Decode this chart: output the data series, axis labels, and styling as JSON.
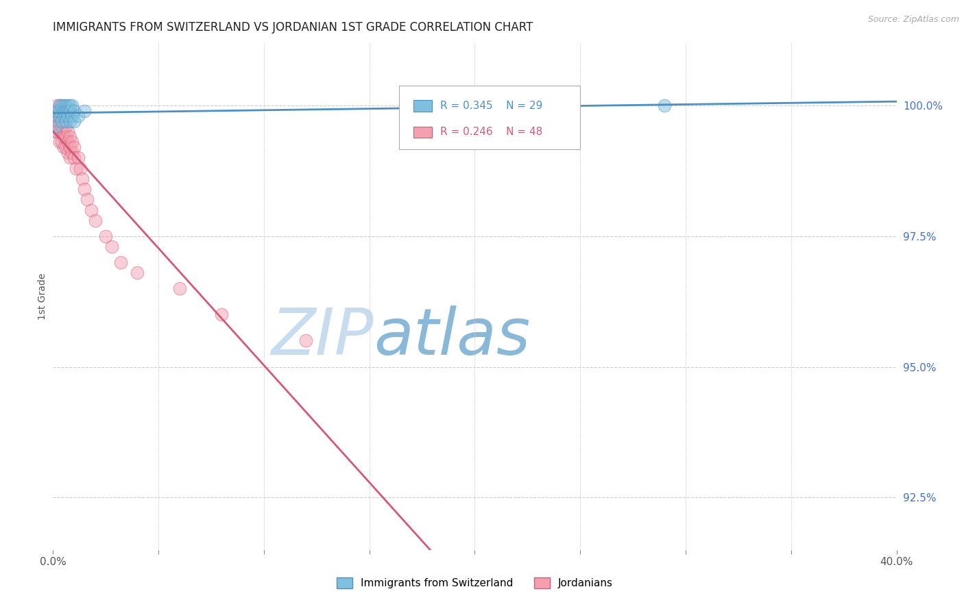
{
  "title": "IMMIGRANTS FROM SWITZERLAND VS JORDANIAN 1ST GRADE CORRELATION CHART",
  "source": "Source: ZipAtlas.com",
  "ylabel": "1st Grade",
  "right_yticks": [
    100.0,
    97.5,
    95.0,
    92.5
  ],
  "right_ytick_labels": [
    "100.0%",
    "97.5%",
    "95.0%",
    "92.5%"
  ],
  "legend_blue_r": "R = 0.345",
  "legend_blue_n": "N = 29",
  "legend_pink_r": "R = 0.246",
  "legend_pink_n": "N = 48",
  "blue_color": "#7fbfdf",
  "pink_color": "#f4a0b0",
  "blue_line_color": "#4a90c4",
  "pink_line_color": "#d45878",
  "watermark_zip_color": "#c8dcf0",
  "watermark_atlas_color": "#8ab8d8",
  "swiss_x": [
    0.001,
    0.002,
    0.002,
    0.003,
    0.003,
    0.003,
    0.004,
    0.004,
    0.005,
    0.005,
    0.005,
    0.006,
    0.006,
    0.006,
    0.006,
    0.007,
    0.007,
    0.007,
    0.008,
    0.008,
    0.008,
    0.009,
    0.009,
    0.01,
    0.01,
    0.012,
    0.015,
    0.23,
    0.29
  ],
  "swiss_y": [
    99.6,
    99.8,
    99.9,
    100.0,
    99.8,
    99.9,
    100.0,
    99.7,
    100.0,
    99.9,
    99.8,
    100.0,
    99.9,
    99.8,
    99.7,
    100.0,
    99.9,
    99.8,
    100.0,
    99.7,
    99.9,
    99.8,
    100.0,
    99.9,
    99.7,
    99.8,
    99.9,
    100.0,
    100.0
  ],
  "jordan_x": [
    0.001,
    0.001,
    0.001,
    0.002,
    0.002,
    0.002,
    0.002,
    0.003,
    0.003,
    0.003,
    0.003,
    0.003,
    0.004,
    0.004,
    0.004,
    0.004,
    0.005,
    0.005,
    0.005,
    0.005,
    0.006,
    0.006,
    0.006,
    0.007,
    0.007,
    0.007,
    0.008,
    0.008,
    0.008,
    0.009,
    0.009,
    0.01,
    0.01,
    0.011,
    0.012,
    0.013,
    0.014,
    0.015,
    0.016,
    0.018,
    0.02,
    0.025,
    0.028,
    0.032,
    0.04,
    0.06,
    0.08,
    0.12
  ],
  "jordan_y": [
    99.7,
    99.6,
    99.5,
    100.0,
    99.8,
    99.7,
    99.5,
    100.0,
    99.8,
    99.7,
    99.5,
    99.3,
    99.8,
    99.6,
    99.5,
    99.3,
    99.7,
    99.5,
    99.4,
    99.2,
    99.6,
    99.4,
    99.2,
    99.5,
    99.3,
    99.1,
    99.4,
    99.2,
    99.0,
    99.3,
    99.1,
    99.2,
    99.0,
    98.8,
    99.0,
    98.8,
    98.6,
    98.4,
    98.2,
    98.0,
    97.8,
    97.5,
    97.3,
    97.0,
    96.8,
    96.5,
    96.0,
    95.5
  ],
  "xmin": 0.0,
  "xmax": 0.4,
  "ymin": 91.5,
  "ymax": 101.2,
  "background_color": "#ffffff",
  "grid_color": "#cccccc"
}
